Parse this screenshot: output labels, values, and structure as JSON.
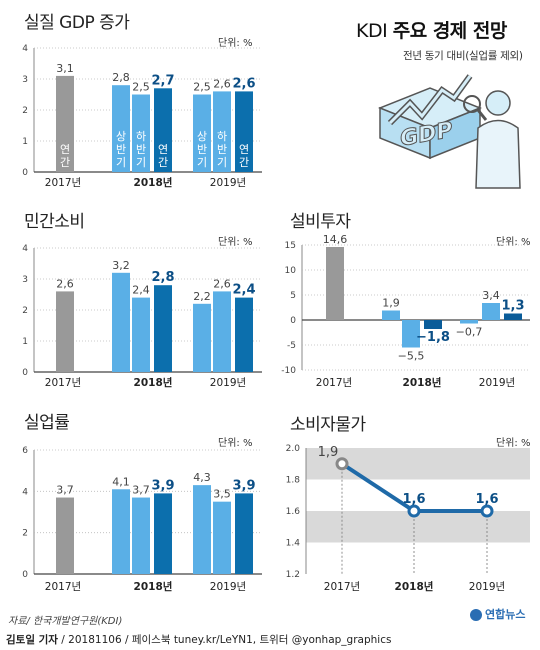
{
  "header": {
    "title_prefix": "KDI",
    "title_main": "주요 경제 전망",
    "subtitle": "전년 동기 대비(실업률 제외)"
  },
  "colors": {
    "gray": "#999999",
    "light_blue": "#5aafe6",
    "blue": "#0c6fad",
    "dark_blue": "#0a5c99",
    "axis_band": "#d9d9d9",
    "line": "#1f6aa8"
  },
  "footer": {
    "source": "자료/ 한국개발연구원(KDI)",
    "credit_name": "김토일 기자",
    "credit_rest": " / 20181106 / 페이스북 tuney.kr/LeYN1, 트위터 @yonhap_graphics",
    "logo": "연합뉴스"
  },
  "chart_data": [
    {
      "id": "gdp",
      "type": "bar",
      "title": "실질 GDP 증가",
      "unit": "단위: %",
      "ylim": [
        0,
        4
      ],
      "yticks": [
        0,
        1,
        2,
        3,
        4
      ],
      "groups": [
        "2017년",
        "2018년",
        "2019년"
      ],
      "bars": [
        {
          "group": "2017년",
          "label": "연간",
          "value": 3.1,
          "color": "gray"
        },
        {
          "group": "2018년",
          "label": "상반기",
          "value": 2.8,
          "color": "light_blue"
        },
        {
          "group": "2018년",
          "label": "하반기",
          "value": 2.5,
          "color": "light_blue"
        },
        {
          "group": "2018년",
          "label": "연간",
          "value": 2.7,
          "color": "blue"
        },
        {
          "group": "2019년",
          "label": "상반기",
          "value": 2.5,
          "color": "light_blue"
        },
        {
          "group": "2019년",
          "label": "하반기",
          "value": 2.6,
          "color": "light_blue"
        },
        {
          "group": "2019년",
          "label": "연간",
          "value": 2.6,
          "color": "blue"
        }
      ]
    },
    {
      "id": "consumption",
      "type": "bar",
      "title": "민간소비",
      "unit": "단위: %",
      "ylim": [
        0,
        4
      ],
      "yticks": [
        0,
        1,
        2,
        3,
        4
      ],
      "groups": [
        "2017년",
        "2018년",
        "2019년"
      ],
      "bars": [
        {
          "group": "2017년",
          "value": 2.6,
          "color": "gray"
        },
        {
          "group": "2018년",
          "value": 3.2,
          "color": "light_blue"
        },
        {
          "group": "2018년",
          "value": 2.4,
          "color": "light_blue"
        },
        {
          "group": "2018년",
          "value": 2.8,
          "color": "blue"
        },
        {
          "group": "2019년",
          "value": 2.2,
          "color": "light_blue"
        },
        {
          "group": "2019년",
          "value": 2.6,
          "color": "light_blue"
        },
        {
          "group": "2019년",
          "value": 2.4,
          "color": "blue"
        }
      ]
    },
    {
      "id": "investment",
      "type": "bar",
      "title": "설비투자",
      "unit": "단위: %",
      "ylim": [
        -10,
        15
      ],
      "yticks": [
        -10,
        -5,
        0,
        5,
        10,
        15
      ],
      "groups": [
        "2017년",
        "2018년",
        "2019년"
      ],
      "bars": [
        {
          "group": "2017년",
          "value": 14.6,
          "color": "gray"
        },
        {
          "group": "2018년",
          "value": 1.9,
          "color": "light_blue"
        },
        {
          "group": "2018년",
          "value": -5.5,
          "color": "light_blue"
        },
        {
          "group": "2018년",
          "value": -1.8,
          "color": "dark_blue"
        },
        {
          "group": "2019년",
          "value": -0.7,
          "color": "light_blue"
        },
        {
          "group": "2019년",
          "value": 3.4,
          "color": "light_blue"
        },
        {
          "group": "2019년",
          "value": 1.3,
          "color": "dark_blue"
        }
      ]
    },
    {
      "id": "unemployment",
      "type": "bar",
      "title": "실업률",
      "unit": "단위: %",
      "ylim": [
        0,
        6
      ],
      "yticks": [
        0,
        2,
        4,
        6
      ],
      "groups": [
        "2017년",
        "2018년",
        "2019년"
      ],
      "bars": [
        {
          "group": "2017년",
          "value": 3.7,
          "color": "gray"
        },
        {
          "group": "2018년",
          "value": 4.1,
          "color": "light_blue"
        },
        {
          "group": "2018년",
          "value": 3.7,
          "color": "light_blue"
        },
        {
          "group": "2018년",
          "value": 3.9,
          "color": "blue"
        },
        {
          "group": "2019년",
          "value": 4.3,
          "color": "light_blue"
        },
        {
          "group": "2019년",
          "value": 3.5,
          "color": "light_blue"
        },
        {
          "group": "2019년",
          "value": 3.9,
          "color": "blue"
        }
      ]
    },
    {
      "id": "cpi",
      "type": "line",
      "title": "소비자물가",
      "unit": "단위: %",
      "ylim": [
        1.2,
        2.0
      ],
      "yticks": [
        1.2,
        1.4,
        1.6,
        1.8,
        2.0
      ],
      "x": [
        "2017년",
        "2018년",
        "2019년"
      ],
      "values": [
        1.9,
        1.6,
        1.6
      ]
    }
  ]
}
